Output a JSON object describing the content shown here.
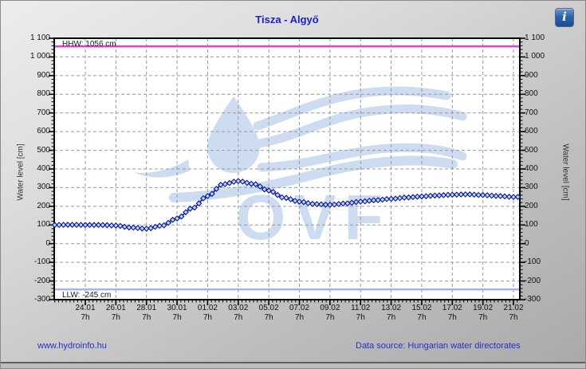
{
  "window": {
    "info_icon_glyph": "i"
  },
  "header": {
    "title": "Tisza - Algyő"
  },
  "footer": {
    "site_link": "www.hydroinfo.hu",
    "source_link": "Data source: Hungarian water directorates"
  },
  "colors": {
    "title_blue": "#1c1ccf",
    "link_blue": "#2230cc",
    "plot_bg": "#ffffff",
    "grid": "#999999",
    "frame": "#000000",
    "hhw_line": "#e93ce9",
    "llw_line": "#a9b2e6",
    "series_stroke": "#0a1690",
    "series_fill": "#bdd5f2",
    "watermark": "#cddcf1"
  },
  "chart_data": {
    "type": "line",
    "title": "Tisza - Algyő",
    "ylabel_left": "Water level [cm]",
    "ylabel_right": "Water level [cm]",
    "ylim": [
      -300,
      1100
    ],
    "y_tick_step": 100,
    "grid": "dashed",
    "watermark_text": "OVF",
    "y_tick_labels": [
      "1 100",
      "1 000",
      "900",
      "800",
      "700",
      "600",
      "500",
      "400",
      "300",
      "200",
      "100",
      "0",
      "-100",
      "-200",
      "-300"
    ],
    "x_ticks": [
      {
        "date": "24.01",
        "time": "7h"
      },
      {
        "date": "26.01",
        "time": "7h"
      },
      {
        "date": "28.01",
        "time": "7h"
      },
      {
        "date": "30.01",
        "time": "7h"
      },
      {
        "date": "01.02",
        "time": "7h"
      },
      {
        "date": "03.02",
        "time": "7h"
      },
      {
        "date": "05.02",
        "time": "7h"
      },
      {
        "date": "07.02",
        "time": "7h"
      },
      {
        "date": "09.02",
        "time": "7h"
      },
      {
        "date": "11.02",
        "time": "7h"
      },
      {
        "date": "13.02",
        "time": "7h"
      },
      {
        "date": "15.02",
        "time": "7h"
      },
      {
        "date": "17.02",
        "time": "7h"
      },
      {
        "date": "19.02",
        "time": "7h"
      },
      {
        "date": "21.02",
        "time": "7h"
      }
    ],
    "reference_lines": [
      {
        "name": "HHW",
        "label": "HHW: 1056 cm",
        "value": 1056
      },
      {
        "name": "LLW",
        "label": "LLW: -245 cm",
        "value": -245
      }
    ],
    "series": [
      {
        "name": "water-level",
        "marker": "diamond",
        "dates": [
          "22.01",
          "23.01",
          "24.01",
          "25.01",
          "26.01",
          "27.01",
          "28.01",
          "29.01",
          "30.01",
          "31.01",
          "01.02",
          "02.02",
          "03.02",
          "04.02",
          "05.02",
          "06.02",
          "07.02",
          "08.02",
          "09.02",
          "10.02",
          "11.02",
          "12.02",
          "13.02",
          "14.02",
          "15.02",
          "16.02",
          "17.02",
          "18.02",
          "19.02",
          "20.02",
          "21.02"
        ],
        "values": [
          100,
          101,
          100,
          100,
          97,
          86,
          80,
          96,
          135,
          190,
          255,
          318,
          335,
          320,
          284,
          246,
          225,
          212,
          208,
          215,
          225,
          233,
          240,
          247,
          253,
          258,
          262,
          264,
          260,
          255,
          250
        ]
      }
    ]
  }
}
